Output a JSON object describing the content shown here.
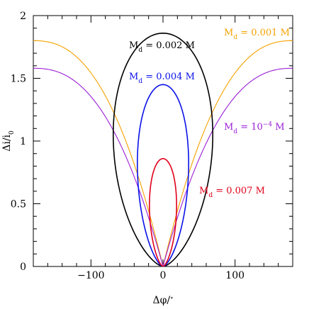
{
  "chart_data": {
    "type": "line",
    "xlabel_main": "Δφ/",
    "xlabel_sup": "∘",
    "ylabel_main": "Δi/i",
    "ylabel_sub": "0",
    "xlim": [
      -180,
      180
    ],
    "ylim": [
      0,
      2
    ],
    "xticks": [
      -100,
      0,
      100
    ],
    "yticks": [
      0,
      0.5,
      1,
      1.5,
      2
    ],
    "xtick_labels": [
      "−100",
      "0",
      "100"
    ],
    "ytick_labels": [
      "0",
      "0.5",
      "1",
      "1.5",
      "2"
    ],
    "series": [
      {
        "name": "M_d = 0.001 M",
        "label_pre": "M",
        "label_sub": "d",
        "label_post": " = 0.001 M",
        "color": "#f5a200",
        "kind": "open",
        "peak": 1.8
      },
      {
        "name": "M_d = 10^-4 M",
        "label_pre": "M",
        "label_sub": "d",
        "label_mid": " = 10",
        "label_sup": "−4",
        "label_post": " M",
        "color": "#9b1fd6",
        "kind": "open",
        "peak": 1.58
      },
      {
        "name": "M_d = 0.002 M",
        "label_pre": "M",
        "label_sub": "d",
        "label_post": " = 0.002 M",
        "color": "#000000",
        "kind": "closed",
        "peak": 1.86,
        "halfwidth": 66
      },
      {
        "name": "M_d = 0.004 M",
        "label_pre": "M",
        "label_sub": "d",
        "label_post": " = 0.004 M",
        "color": "#0a12e8",
        "kind": "closed",
        "peak": 1.45,
        "halfwidth": 34
      },
      {
        "name": "M_d = 0.007 M",
        "label_pre": "M",
        "label_sub": "d",
        "label_post": " = 0.007 M",
        "color": "#e0001a",
        "kind": "closed",
        "peak": 0.86,
        "halfwidth": 18
      }
    ]
  }
}
